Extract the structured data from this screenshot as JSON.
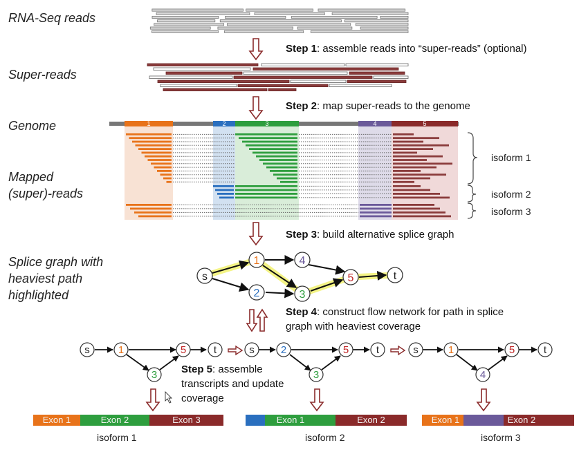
{
  "labels": {
    "rnaseq": "RNA-Seq reads",
    "super_reads": "Super-reads",
    "genome": "Genome",
    "mapped_l1": "Mapped",
    "mapped_l2": "(super)-reads",
    "splice_l1": "Splice graph with",
    "splice_l2": "heaviest path",
    "splice_l3": "highlighted"
  },
  "steps": {
    "s1_bold": "Step 1",
    "s1_text": ": assemble reads into “super-reads” (optional)",
    "s2_bold": "Step 2",
    "s2_text": ": map super-reads to the genome",
    "s3_bold": "Step 3",
    "s3_text": ": build alternative splice graph",
    "s4_bold": "Step 4",
    "s4_text_l1": ": construct flow network for path in splice",
    "s4_text_l2": "graph with heaviest coverage",
    "s5_bold": "Step 5",
    "s5_text_l1": ":  assemble",
    "s5_text_l2": "transcripts and update",
    "s5_text_l3": "coverage"
  },
  "exon_numbers": [
    "1",
    "2",
    "3",
    "4",
    "5"
  ],
  "isoform_labels": [
    "isoform 1",
    "isoform 2",
    "isoform 3"
  ],
  "nodes": {
    "s": "s",
    "n1": "1",
    "n2": "2",
    "n3": "3",
    "n4": "4",
    "n5": "5",
    "t": "t"
  },
  "transcripts": [
    {
      "exons": [
        "Exon 1",
        "Exon 2",
        "Exon 3"
      ],
      "caption": "isoform 1"
    },
    {
      "exons": [
        "Exon 1",
        "Exon 2"
      ],
      "caption": "isoform 2"
    },
    {
      "exons": [
        "Exon 1",
        "Exon 2"
      ],
      "caption": "isoform 3"
    }
  ],
  "colors": {
    "exon1": "#e8731a",
    "exon2": "#2e9e3e",
    "exon3": "#8a2a2a",
    "blue": "#2a6fbf",
    "purple": "#6b5a9a",
    "arrow": "#8a2a2a",
    "highlight": "#f3f37a"
  }
}
